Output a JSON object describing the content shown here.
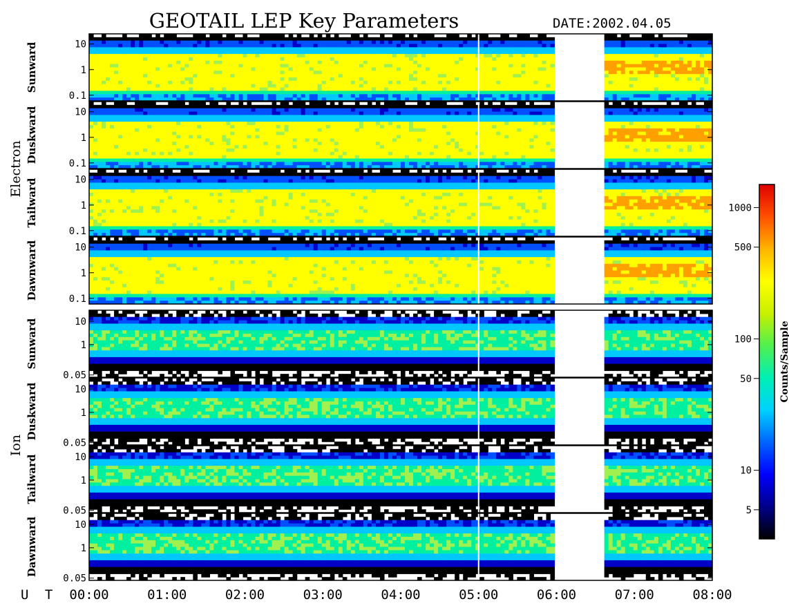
{
  "colors": {
    "palette": [
      "#000000",
      "#0000c8",
      "#0050ff",
      "#00c8ff",
      "#00f0a0",
      "#a0f050",
      "#ffff00",
      "#ffa000",
      "#ff3000",
      "#e00000"
    ]
  },
  "chart_data": {
    "type": "heatmap",
    "title": "GEOTAIL LEP Key Parameters",
    "date_label": "DATE:",
    "date_value": "2002.04.05",
    "x_axis_label": "U T",
    "x_ticks": [
      "00:00",
      "01:00",
      "02:00",
      "03:00",
      "04:00",
      "05:00",
      "06:00",
      "07:00",
      "08:00"
    ],
    "xlim": [
      0,
      8
    ],
    "data_gap": [
      6.0,
      6.6
    ],
    "white_line_time": 5.0,
    "groups": [
      {
        "name": "Electron",
        "y_ticks": [
          "10",
          "1",
          "0.1"
        ],
        "y_tick_values": [
          10,
          1,
          0.1
        ],
        "ylim": [
          0.06,
          25
        ],
        "y_scale": "log",
        "panels": [
          {
            "name": "Sunward"
          },
          {
            "name": "Duskward"
          },
          {
            "name": "Tailward"
          },
          {
            "name": "Dawnward"
          }
        ]
      },
      {
        "name": "Ion",
        "y_ticks": [
          "10",
          "1",
          "0.05"
        ],
        "y_tick_values": [
          10,
          1,
          0.05
        ],
        "ylim": [
          0.04,
          30
        ],
        "y_scale": "log",
        "panels": [
          {
            "name": "Sunward"
          },
          {
            "name": "Duskward"
          },
          {
            "name": "Tailward"
          },
          {
            "name": "Dawnward"
          }
        ]
      }
    ],
    "colorbar": {
      "title": "Counts/Sample",
      "scale": "log",
      "range": [
        3,
        1500
      ],
      "tick_labels": [
        "1000",
        "500",
        "100",
        "50",
        "10",
        "5"
      ],
      "tick_values": [
        1000,
        500,
        100,
        50,
        10,
        5
      ]
    }
  }
}
